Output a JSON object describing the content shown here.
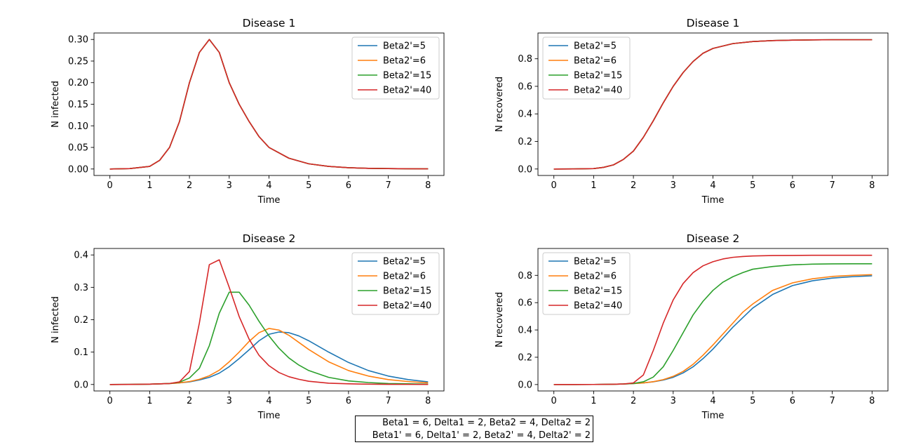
{
  "colors": {
    "series": [
      "#1f77b4",
      "#ff7f0e",
      "#2ca02c",
      "#d62728"
    ],
    "axes": "#000000",
    "background": "#ffffff"
  },
  "caption": {
    "line1": "Beta1 = 6, Delta1 = 2, Beta2 = 4, Delta2 = 2",
    "line2": "Beta1' = 6, Delta1' = 2, Beta2' = 4, Delta2' = 2"
  },
  "chart_data": [
    {
      "type": "line",
      "title": "Disease 1",
      "xlabel": "Time",
      "ylabel": "N infected",
      "xlim": [
        -0.4,
        8.4
      ],
      "ylim": [
        -0.015,
        0.315
      ],
      "xticks": [
        0,
        1,
        2,
        3,
        4,
        5,
        6,
        7,
        8
      ],
      "yticks": [
        0.0,
        0.05,
        0.1,
        0.15,
        0.2,
        0.25,
        0.3
      ],
      "ytick_labels": [
        "0.00",
        "0.05",
        "0.10",
        "0.15",
        "0.20",
        "0.25",
        "0.30"
      ],
      "legend": "top-right",
      "x": [
        0,
        0.5,
        1,
        1.25,
        1.5,
        1.75,
        2,
        2.25,
        2.5,
        2.75,
        3,
        3.25,
        3.5,
        3.75,
        4,
        4.5,
        5,
        5.5,
        6,
        6.5,
        7,
        7.5,
        8
      ],
      "series": [
        {
          "name": "Beta2'=5",
          "values": [
            0,
            0.001,
            0.006,
            0.02,
            0.05,
            0.11,
            0.2,
            0.27,
            0.3,
            0.27,
            0.2,
            0.15,
            0.11,
            0.075,
            0.05,
            0.025,
            0.012,
            0.006,
            0.003,
            0.0015,
            0.001,
            0.0005,
            0.0003
          ]
        },
        {
          "name": "Beta2'=6",
          "values": [
            0,
            0.001,
            0.006,
            0.02,
            0.05,
            0.11,
            0.2,
            0.27,
            0.3,
            0.27,
            0.2,
            0.15,
            0.11,
            0.075,
            0.05,
            0.025,
            0.012,
            0.006,
            0.003,
            0.0015,
            0.001,
            0.0005,
            0.0003
          ]
        },
        {
          "name": "Beta2'=15",
          "values": [
            0,
            0.001,
            0.006,
            0.02,
            0.05,
            0.11,
            0.2,
            0.27,
            0.3,
            0.27,
            0.2,
            0.15,
            0.11,
            0.075,
            0.05,
            0.025,
            0.012,
            0.006,
            0.003,
            0.0015,
            0.001,
            0.0005,
            0.0003
          ]
        },
        {
          "name": "Beta2'=40",
          "values": [
            0,
            0.001,
            0.006,
            0.02,
            0.05,
            0.11,
            0.2,
            0.27,
            0.3,
            0.27,
            0.2,
            0.15,
            0.11,
            0.075,
            0.05,
            0.025,
            0.012,
            0.006,
            0.003,
            0.0015,
            0.001,
            0.0005,
            0.0003
          ]
        }
      ]
    },
    {
      "type": "line",
      "title": "Disease 1",
      "xlabel": "Time",
      "ylabel": "N recovered",
      "xlim": [
        -0.4,
        8.4
      ],
      "ylim": [
        -0.047,
        0.987
      ],
      "xticks": [
        0,
        1,
        2,
        3,
        4,
        5,
        6,
        7,
        8
      ],
      "yticks": [
        0.0,
        0.2,
        0.4,
        0.6,
        0.8
      ],
      "ytick_labels": [
        "0.0",
        "0.2",
        "0.4",
        "0.6",
        "0.8"
      ],
      "legend": "top-left",
      "x": [
        0,
        0.5,
        1,
        1.25,
        1.5,
        1.75,
        2,
        2.25,
        2.5,
        2.75,
        3,
        3.25,
        3.5,
        3.75,
        4,
        4.5,
        5,
        5.5,
        6,
        6.5,
        7,
        7.5,
        8
      ],
      "series": [
        {
          "name": "Beta2'=5",
          "values": [
            0,
            0.0005,
            0.003,
            0.012,
            0.03,
            0.07,
            0.13,
            0.23,
            0.35,
            0.48,
            0.6,
            0.7,
            0.78,
            0.84,
            0.875,
            0.91,
            0.925,
            0.932,
            0.935,
            0.937,
            0.938,
            0.938,
            0.938
          ]
        },
        {
          "name": "Beta2'=6",
          "values": [
            0,
            0.0005,
            0.003,
            0.012,
            0.03,
            0.07,
            0.13,
            0.23,
            0.35,
            0.48,
            0.6,
            0.7,
            0.78,
            0.84,
            0.875,
            0.91,
            0.925,
            0.932,
            0.935,
            0.937,
            0.938,
            0.938,
            0.938
          ]
        },
        {
          "name": "Beta2'=15",
          "values": [
            0,
            0.0005,
            0.003,
            0.012,
            0.03,
            0.07,
            0.13,
            0.23,
            0.35,
            0.48,
            0.6,
            0.7,
            0.78,
            0.84,
            0.875,
            0.91,
            0.925,
            0.932,
            0.935,
            0.937,
            0.938,
            0.938,
            0.938
          ]
        },
        {
          "name": "Beta2'=40",
          "values": [
            0,
            0.0005,
            0.003,
            0.012,
            0.03,
            0.07,
            0.13,
            0.23,
            0.35,
            0.48,
            0.6,
            0.7,
            0.78,
            0.84,
            0.875,
            0.91,
            0.925,
            0.932,
            0.935,
            0.937,
            0.938,
            0.938,
            0.938
          ]
        }
      ]
    },
    {
      "type": "line",
      "title": "Disease 2",
      "xlabel": "Time",
      "ylabel": "N infected",
      "xlim": [
        -0.4,
        8.4
      ],
      "ylim": [
        -0.02,
        0.42
      ],
      "xticks": [
        0,
        1,
        2,
        3,
        4,
        5,
        6,
        7,
        8
      ],
      "yticks": [
        0.0,
        0.1,
        0.2,
        0.3,
        0.4
      ],
      "ytick_labels": [
        "0.0",
        "0.1",
        "0.2",
        "0.3",
        "0.4"
      ],
      "legend": "top-right",
      "x": [
        0,
        0.5,
        1,
        1.5,
        1.75,
        2,
        2.25,
        2.5,
        2.75,
        3,
        3.25,
        3.5,
        3.75,
        4,
        4.25,
        4.5,
        4.75,
        5,
        5.5,
        6,
        6.5,
        7,
        7.5,
        8
      ],
      "series": [
        {
          "name": "Beta2'=5",
          "values": [
            0,
            0.0003,
            0.001,
            0.003,
            0.005,
            0.008,
            0.014,
            0.022,
            0.035,
            0.055,
            0.08,
            0.107,
            0.135,
            0.155,
            0.162,
            0.16,
            0.15,
            0.135,
            0.1,
            0.068,
            0.043,
            0.026,
            0.015,
            0.008
          ]
        },
        {
          "name": "Beta2'=6",
          "values": [
            0,
            0.0003,
            0.001,
            0.003,
            0.005,
            0.009,
            0.016,
            0.027,
            0.044,
            0.07,
            0.1,
            0.133,
            0.16,
            0.173,
            0.168,
            0.152,
            0.13,
            0.108,
            0.07,
            0.043,
            0.026,
            0.015,
            0.009,
            0.005
          ]
        },
        {
          "name": "Beta2'=15",
          "values": [
            0,
            0.0002,
            0.001,
            0.003,
            0.007,
            0.02,
            0.05,
            0.12,
            0.22,
            0.285,
            0.285,
            0.245,
            0.195,
            0.15,
            0.112,
            0.082,
            0.06,
            0.043,
            0.022,
            0.011,
            0.006,
            0.003,
            0.002,
            0.001
          ]
        },
        {
          "name": "Beta2'=40",
          "values": [
            0,
            0.0002,
            0.001,
            0.003,
            0.008,
            0.04,
            0.19,
            0.37,
            0.385,
            0.3,
            0.21,
            0.14,
            0.09,
            0.058,
            0.037,
            0.024,
            0.016,
            0.01,
            0.004,
            0.002,
            0.001,
            0.0005,
            0.0003,
            0.0002
          ]
        }
      ]
    },
    {
      "type": "line",
      "title": "Disease 2",
      "xlabel": "Time",
      "ylabel": "N recovered",
      "xlim": [
        -0.4,
        8.4
      ],
      "ylim": [
        -0.047,
        0.997
      ],
      "xticks": [
        0,
        1,
        2,
        3,
        4,
        5,
        6,
        7,
        8
      ],
      "yticks": [
        0.0,
        0.2,
        0.4,
        0.6,
        0.8
      ],
      "ytick_labels": [
        "0.0",
        "0.2",
        "0.4",
        "0.6",
        "0.8"
      ],
      "legend": "top-left",
      "x": [
        0,
        0.5,
        1,
        1.5,
        1.75,
        2,
        2.25,
        2.5,
        2.75,
        3,
        3.25,
        3.5,
        3.75,
        4,
        4.25,
        4.5,
        4.75,
        5,
        5.5,
        6,
        6.5,
        7,
        7.5,
        8
      ],
      "series": [
        {
          "name": "Beta2'=5",
          "values": [
            0,
            0.0002,
            0.0006,
            0.002,
            0.004,
            0.007,
            0.012,
            0.02,
            0.033,
            0.053,
            0.085,
            0.13,
            0.19,
            0.26,
            0.34,
            0.42,
            0.49,
            0.56,
            0.66,
            0.725,
            0.76,
            0.78,
            0.79,
            0.797
          ]
        },
        {
          "name": "Beta2'=6",
          "values": [
            0,
            0.0002,
            0.0006,
            0.002,
            0.004,
            0.007,
            0.012,
            0.021,
            0.036,
            0.06,
            0.096,
            0.148,
            0.215,
            0.29,
            0.37,
            0.45,
            0.53,
            0.59,
            0.69,
            0.745,
            0.775,
            0.792,
            0.8,
            0.805
          ]
        },
        {
          "name": "Beta2'=15",
          "values": [
            0,
            0.0002,
            0.0006,
            0.002,
            0.004,
            0.008,
            0.02,
            0.055,
            0.13,
            0.25,
            0.38,
            0.51,
            0.61,
            0.69,
            0.75,
            0.79,
            0.82,
            0.845,
            0.865,
            0.877,
            0.882,
            0.884,
            0.885,
            0.885
          ]
        },
        {
          "name": "Beta2'=40",
          "values": [
            0,
            0.0002,
            0.0006,
            0.002,
            0.004,
            0.012,
            0.07,
            0.25,
            0.45,
            0.62,
            0.74,
            0.82,
            0.87,
            0.9,
            0.92,
            0.932,
            0.938,
            0.942,
            0.945,
            0.946,
            0.947,
            0.947,
            0.947,
            0.947
          ]
        }
      ]
    }
  ]
}
